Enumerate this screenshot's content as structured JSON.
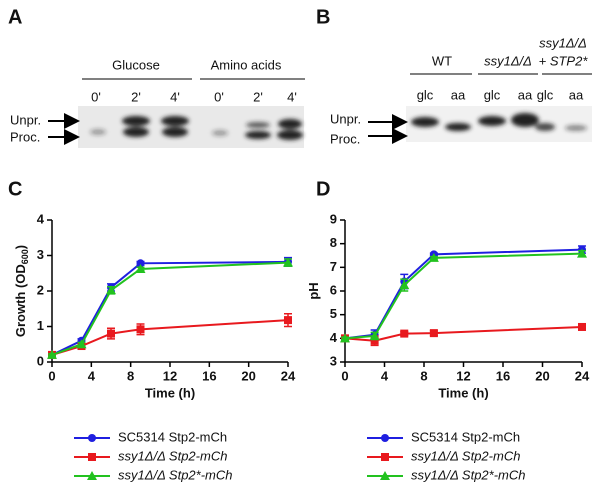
{
  "panels": {
    "a": {
      "letter": "A",
      "groups": [
        "Glucose",
        "Amino acids"
      ],
      "lanes": [
        "0'",
        "2'",
        "4'",
        "0'",
        "2'",
        "4'"
      ],
      "markers": [
        "Unpr.",
        "Proc."
      ]
    },
    "b": {
      "letter": "B",
      "groups": [
        "WT",
        "ssy1Δ/Δ"
      ],
      "group3": [
        "ssy1Δ/Δ",
        "+ STP2*"
      ],
      "lanes": [
        "glc",
        "aa",
        "glc",
        "aa",
        "glc",
        "aa"
      ],
      "markers": [
        "Unpr.",
        "Proc."
      ]
    }
  },
  "chart_data": [
    {
      "type": "line",
      "panel_label": "C",
      "x_label": "Time (h)",
      "y_label": "Growth (OD",
      "y_label_sub": "600",
      "y_label_end": ")",
      "x": [
        0,
        3,
        6,
        9,
        24
      ],
      "xlim": [
        0,
        24
      ],
      "xticks": [
        0,
        4,
        8,
        12,
        16,
        20,
        24
      ],
      "ylim": [
        0,
        4
      ],
      "yticks": [
        0,
        1,
        2,
        3,
        4
      ],
      "series": [
        {
          "name": "SC5314 Stp2-mCh",
          "color": "#1f1fe0",
          "marker": "circle",
          "values": [
            0.2,
            0.6,
            2.1,
            2.78,
            2.82
          ],
          "errors": [
            0.03,
            0.05,
            0.1,
            0.05,
            0.12
          ]
        },
        {
          "name": "ssy1Δ/Δ Stp2-mCh",
          "color": "#e8191e",
          "marker": "square",
          "values": [
            0.2,
            0.45,
            0.8,
            0.92,
            1.18
          ],
          "errors": [
            0.03,
            0.08,
            0.15,
            0.15,
            0.18
          ]
        },
        {
          "name": "ssy1Δ/Δ Stp2*-mCh",
          "color": "#22c21f",
          "marker": "triangle",
          "values": [
            0.2,
            0.5,
            2.02,
            2.62,
            2.8
          ],
          "errors": [
            0.03,
            0.05,
            0.1,
            0.05,
            0.1
          ]
        }
      ]
    },
    {
      "type": "line",
      "panel_label": "D",
      "x_label": "Time (h)",
      "y_label": "pH",
      "x": [
        0,
        3,
        6,
        9,
        24
      ],
      "xlim": [
        0,
        24
      ],
      "xticks": [
        0,
        4,
        8,
        12,
        16,
        20,
        24
      ],
      "ylim": [
        3,
        9
      ],
      "yticks": [
        3,
        4,
        5,
        6,
        7,
        8,
        9
      ],
      "series": [
        {
          "name": "SC5314 Stp2-mCh",
          "color": "#1f1fe0",
          "marker": "circle",
          "values": [
            4.0,
            4.15,
            6.4,
            7.55,
            7.75
          ],
          "errors": [
            0.05,
            0.2,
            0.3,
            0.05,
            0.15
          ]
        },
        {
          "name": "ssy1Δ/Δ Stp2-mCh",
          "color": "#e8191e",
          "marker": "square",
          "values": [
            4.0,
            3.9,
            4.2,
            4.22,
            4.48
          ],
          "errors": [
            0.05,
            0.2,
            0.08,
            0.1,
            0.08
          ]
        },
        {
          "name": "ssy1Δ/Δ Stp2*-mCh",
          "color": "#22c21f",
          "marker": "triangle",
          "values": [
            4.0,
            4.1,
            6.25,
            7.4,
            7.58
          ],
          "errors": [
            0.05,
            0.15,
            0.25,
            0.05,
            0.12
          ]
        }
      ]
    }
  ]
}
